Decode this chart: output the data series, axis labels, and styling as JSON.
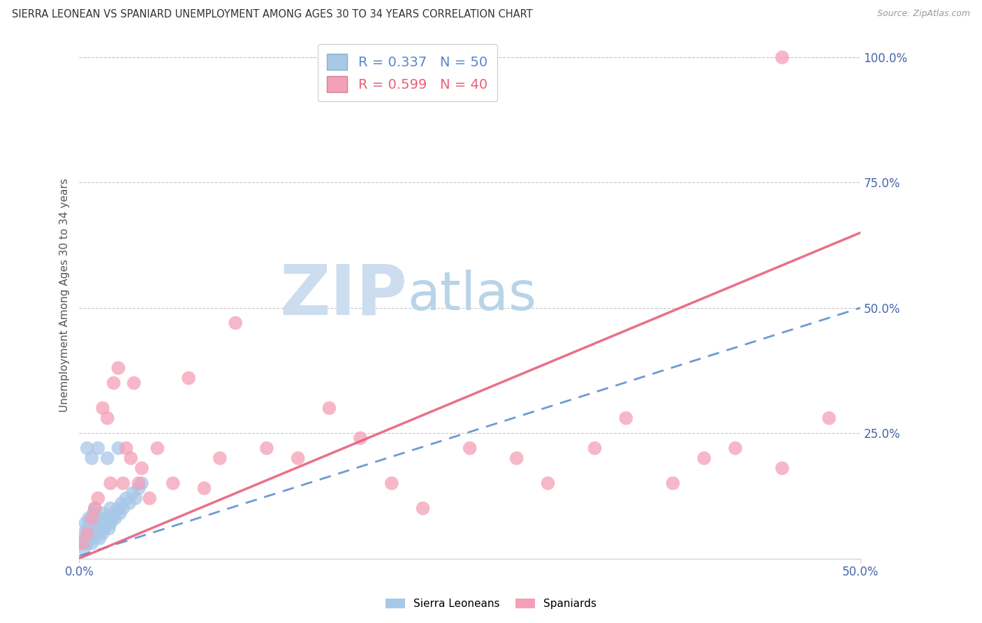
{
  "title": "SIERRA LEONEAN VS SPANIARD UNEMPLOYMENT AMONG AGES 30 TO 34 YEARS CORRELATION CHART",
  "source": "Source: ZipAtlas.com",
  "ylabel": "Unemployment Among Ages 30 to 34 years",
  "xlim": [
    0.0,
    0.5
  ],
  "ylim": [
    0.0,
    1.05
  ],
  "xticks": [
    0.0,
    0.5
  ],
  "xtick_labels": [
    "0.0%",
    "50.0%"
  ],
  "yticks": [
    0.25,
    0.5,
    0.75,
    1.0
  ],
  "ytick_labels": [
    "25.0%",
    "50.0%",
    "75.0%",
    "100.0%"
  ],
  "blue_R": 0.337,
  "blue_N": 50,
  "pink_R": 0.599,
  "pink_N": 40,
  "blue_color": "#a8c8e8",
  "pink_color": "#f4a0b8",
  "blue_line_color": "#5588cc",
  "pink_line_color": "#e8607a",
  "axis_label_color": "#4466aa",
  "grid_color": "#c8c8c8",
  "title_color": "#333333",
  "blue_scatter_x": [
    0.002,
    0.003,
    0.003,
    0.004,
    0.004,
    0.005,
    0.005,
    0.006,
    0.006,
    0.007,
    0.007,
    0.008,
    0.008,
    0.009,
    0.009,
    0.01,
    0.01,
    0.01,
    0.011,
    0.012,
    0.012,
    0.013,
    0.013,
    0.014,
    0.015,
    0.015,
    0.016,
    0.017,
    0.018,
    0.019,
    0.02,
    0.02,
    0.021,
    0.022,
    0.023,
    0.025,
    0.026,
    0.027,
    0.028,
    0.03,
    0.032,
    0.034,
    0.036,
    0.038,
    0.04,
    0.005,
    0.008,
    0.012,
    0.018,
    0.025
  ],
  "blue_scatter_y": [
    0.03,
    0.02,
    0.05,
    0.04,
    0.07,
    0.03,
    0.06,
    0.05,
    0.08,
    0.04,
    0.07,
    0.03,
    0.06,
    0.05,
    0.09,
    0.04,
    0.07,
    0.1,
    0.06,
    0.05,
    0.08,
    0.04,
    0.07,
    0.06,
    0.05,
    0.09,
    0.06,
    0.08,
    0.07,
    0.06,
    0.07,
    0.1,
    0.08,
    0.09,
    0.08,
    0.1,
    0.09,
    0.11,
    0.1,
    0.12,
    0.11,
    0.13,
    0.12,
    0.14,
    0.15,
    0.22,
    0.2,
    0.22,
    0.2,
    0.22
  ],
  "pink_scatter_x": [
    0.002,
    0.005,
    0.008,
    0.01,
    0.012,
    0.015,
    0.018,
    0.02,
    0.022,
    0.025,
    0.028,
    0.03,
    0.033,
    0.035,
    0.038,
    0.04,
    0.045,
    0.05,
    0.06,
    0.07,
    0.08,
    0.09,
    0.1,
    0.12,
    0.14,
    0.16,
    0.18,
    0.2,
    0.22,
    0.25,
    0.28,
    0.3,
    0.33,
    0.35,
    0.38,
    0.4,
    0.42,
    0.45,
    0.48,
    0.45
  ],
  "pink_scatter_y": [
    0.03,
    0.05,
    0.08,
    0.1,
    0.12,
    0.3,
    0.28,
    0.15,
    0.35,
    0.38,
    0.15,
    0.22,
    0.2,
    0.35,
    0.15,
    0.18,
    0.12,
    0.22,
    0.15,
    0.36,
    0.14,
    0.2,
    0.47,
    0.22,
    0.2,
    0.3,
    0.24,
    0.15,
    0.1,
    0.22,
    0.2,
    0.15,
    0.22,
    0.28,
    0.15,
    0.2,
    0.22,
    0.18,
    0.28,
    1.0
  ],
  "blue_trend_x": [
    0.0,
    0.5
  ],
  "blue_trend_y": [
    0.005,
    0.5
  ],
  "pink_trend_x": [
    0.0,
    0.5
  ],
  "pink_trend_y": [
    0.0,
    0.65
  ]
}
